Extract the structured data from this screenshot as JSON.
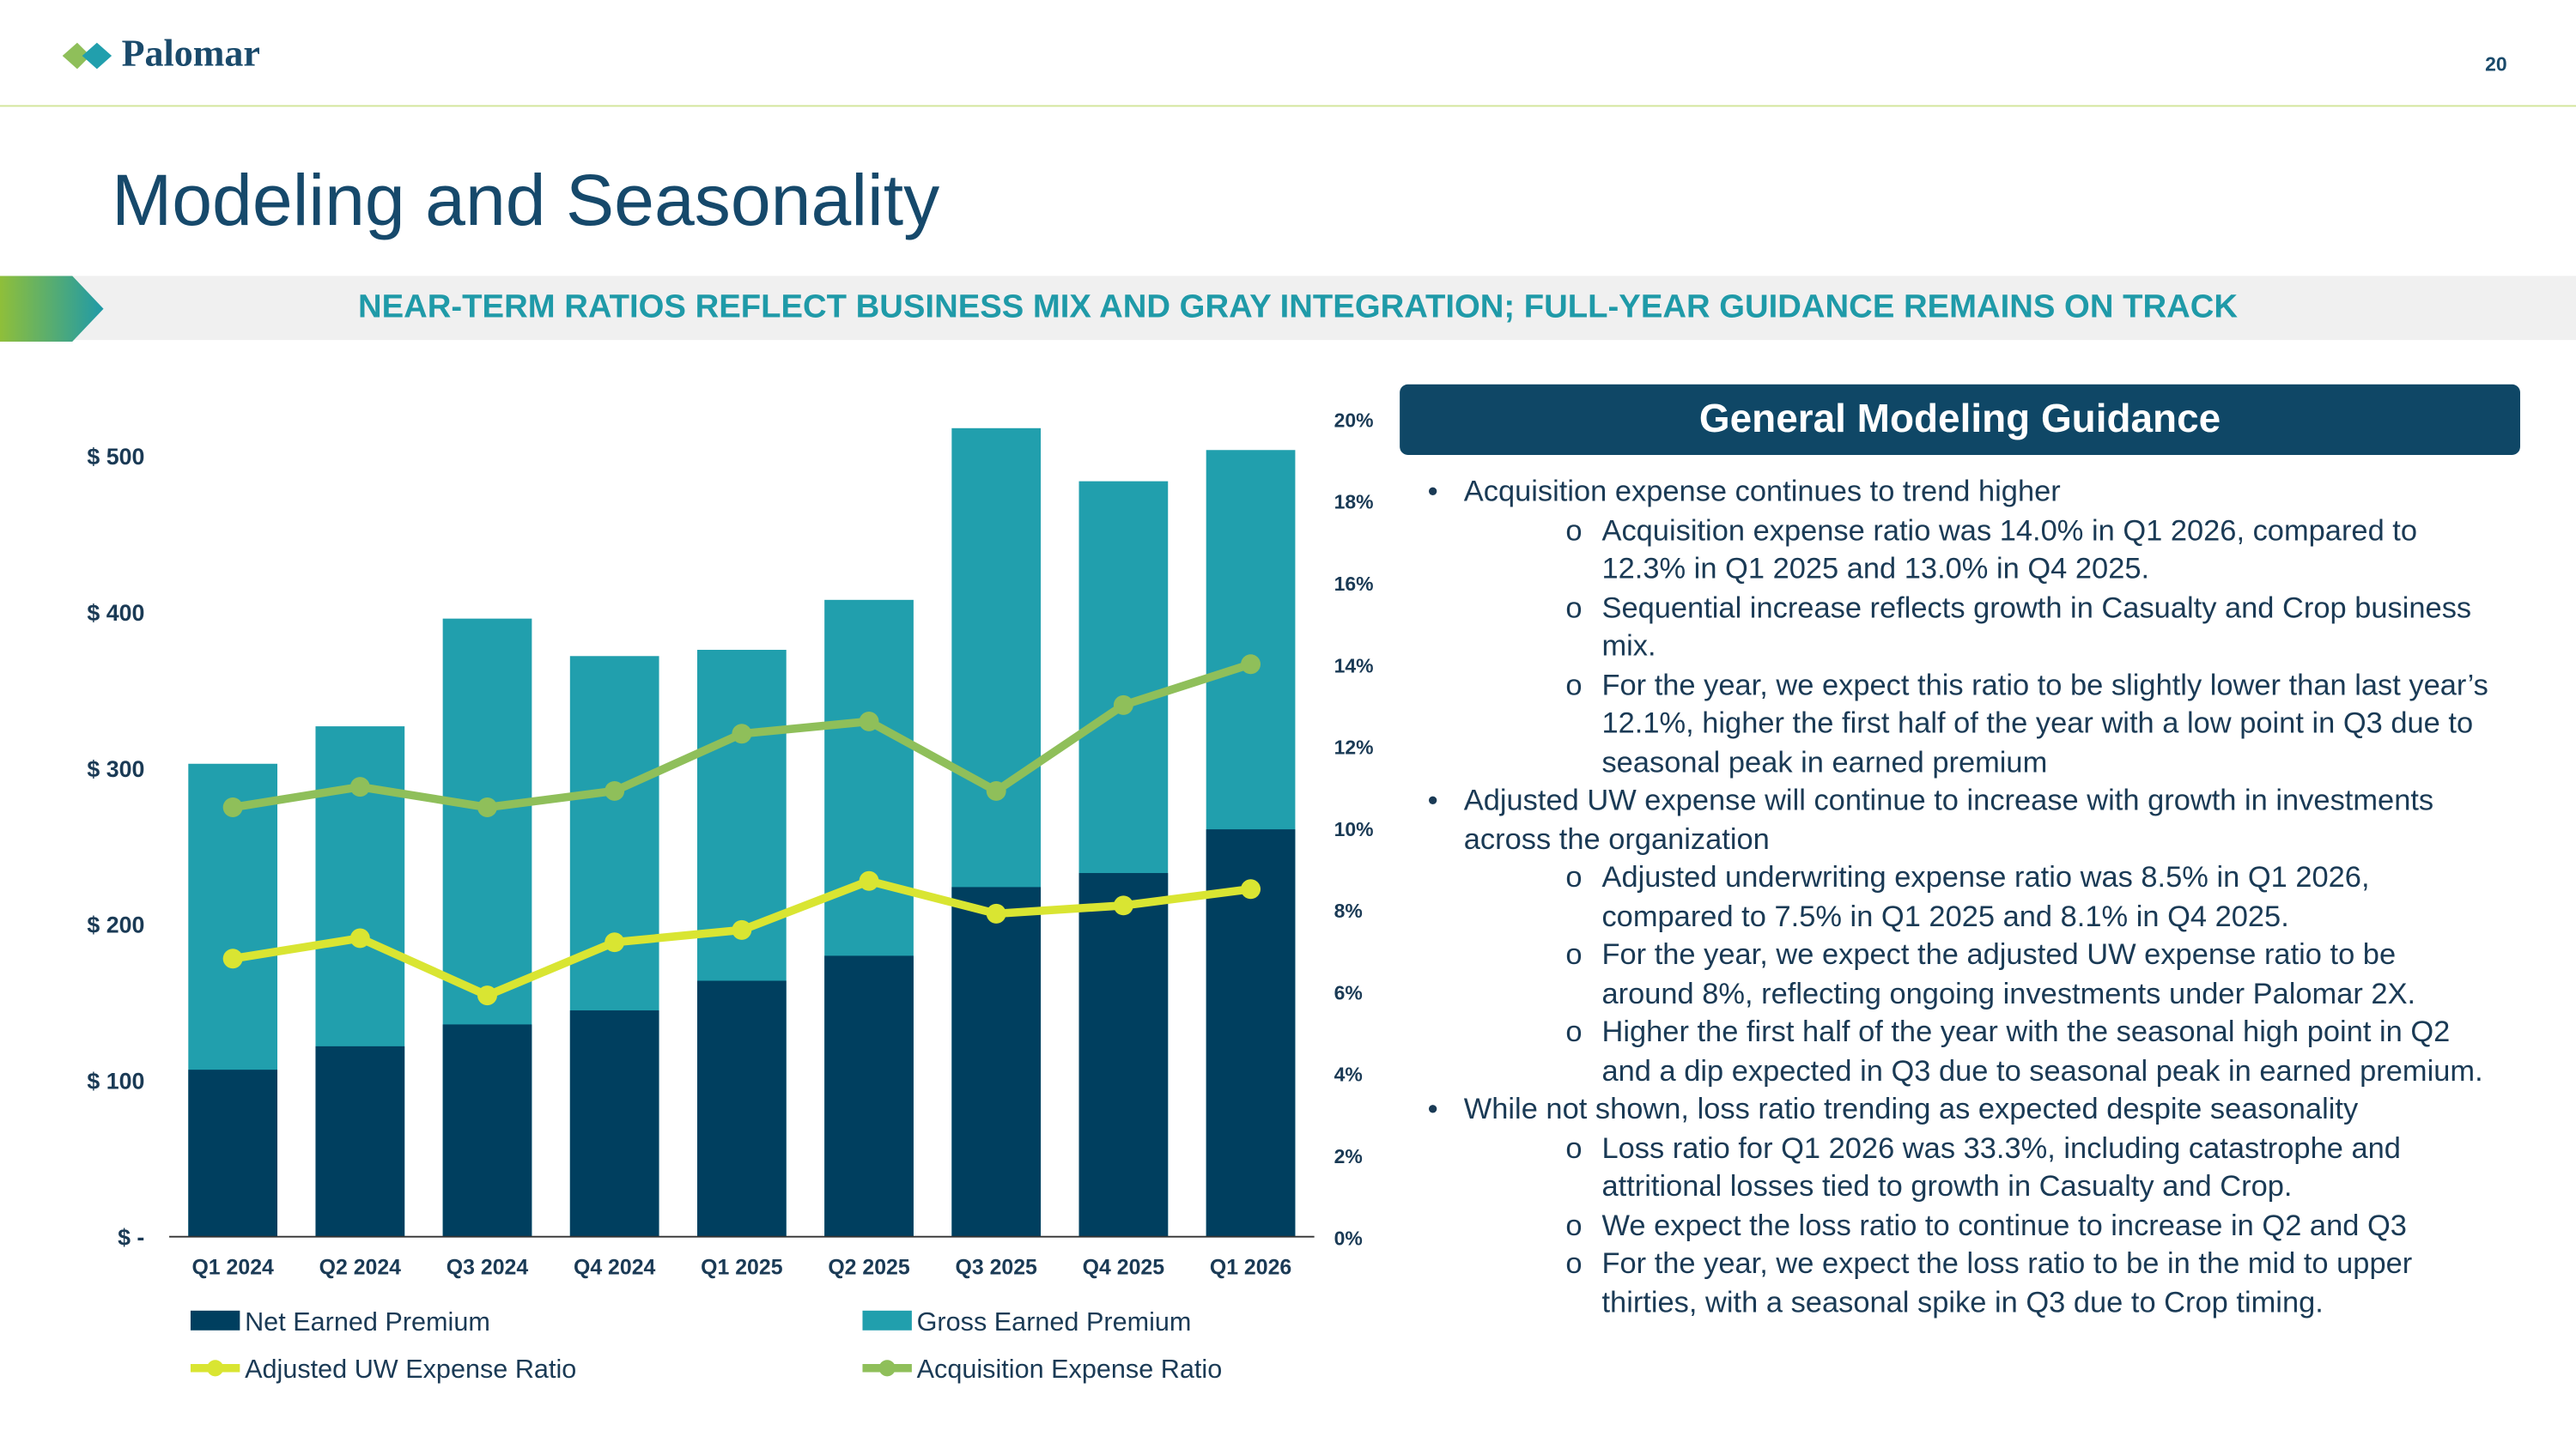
{
  "header": {
    "logo": "Palomar",
    "page_number": "20",
    "title": "Modeling and Seasonality",
    "subtitle": "NEAR-TERM RATIOS REFLECT BUSINESS MIX AND GRAY INTEGRATION; FULL-YEAR GUIDANCE REMAINS ON TRACK"
  },
  "chart_data": {
    "type": "bar",
    "categories": [
      "Q1 2024",
      "Q2 2024",
      "Q3 2024",
      "Q4 2024",
      "Q1 2025",
      "Q2 2025",
      "Q3 2025",
      "Q4 2025",
      "Q1 2026"
    ],
    "series": [
      {
        "name": "Gross Earned Premium",
        "type": "bar",
        "color": "#219fad",
        "values": [
          303,
          327,
          396,
          372,
          376,
          408,
          518,
          484,
          504
        ]
      },
      {
        "name": "Net Earned Premium",
        "type": "bar",
        "color": "#003f5f",
        "values": [
          107,
          122,
          136,
          145,
          164,
          180,
          224,
          233,
          261
        ]
      },
      {
        "name": "Adjusted UW Expense Ratio",
        "type": "line",
        "axis": "y2",
        "color": "#d9e532",
        "values": [
          6.8,
          7.3,
          5.9,
          7.2,
          7.5,
          8.7,
          7.9,
          8.1,
          8.5
        ]
      },
      {
        "name": "Acquisition Expense Ratio",
        "type": "line",
        "axis": "y2",
        "color": "#8fbf5a",
        "values": [
          10.5,
          11.0,
          10.5,
          10.9,
          12.3,
          12.6,
          10.9,
          13.0,
          14.0
        ]
      }
    ],
    "ylim": [
      0,
      524
    ],
    "yticks": [
      {
        "value": 0,
        "label": "$ -"
      },
      {
        "value": 100,
        "label": "$ 100"
      },
      {
        "value": 200,
        "label": "$ 200"
      },
      {
        "value": 300,
        "label": "$ 300"
      },
      {
        "value": 400,
        "label": "$ 400"
      },
      {
        "value": 500,
        "label": "$ 500"
      }
    ],
    "y2lim": [
      0,
      20
    ],
    "y2ticks": [
      {
        "value": 0,
        "label": "0%"
      },
      {
        "value": 2,
        "label": "2%"
      },
      {
        "value": 4,
        "label": "4%"
      },
      {
        "value": 6,
        "label": "6%"
      },
      {
        "value": 8,
        "label": "8%"
      },
      {
        "value": 10,
        "label": "10%"
      },
      {
        "value": 12,
        "label": "12%"
      },
      {
        "value": 14,
        "label": "14%"
      },
      {
        "value": 16,
        "label": "16%"
      },
      {
        "value": 18,
        "label": "18%"
      },
      {
        "value": 20,
        "label": "20%"
      }
    ],
    "grid": false
  },
  "guidance": {
    "title": "General Modeling Guidance",
    "bullets": [
      {
        "text": "Acquisition expense continues to trend higher",
        "items": [
          "Acquisition expense ratio was 14.0% in Q1 2026, compared to 12.3% in Q1 2025 and 13.0% in Q4 2025.",
          "Sequential increase reflects growth in Casualty and Crop business mix.",
          "For the year, we expect this ratio to be slightly lower than last year’s 12.1%, higher the first half of the year with a low point in Q3 due to seasonal peak in earned premium"
        ]
      },
      {
        "text": "Adjusted UW expense will continue to increase with growth in investments across the organization",
        "items": [
          "Adjusted underwriting expense ratio was 8.5% in Q1 2026, compared to 7.5% in Q1 2025 and 8.1% in Q4 2025.",
          "For the year, we expect the adjusted UW expense ratio to be around 8%, reflecting ongoing investments under Palomar 2X.",
          "Higher the first half of the year with the seasonal high point in Q2 and a dip expected in Q3 due to seasonal peak in earned premium."
        ]
      },
      {
        "text": "While not shown, loss ratio trending as expected despite seasonality",
        "items": [
          "Loss ratio for Q1 2026 was 33.3%, including catastrophe and attritional losses tied to growth in Casualty and Crop.",
          "We expect the loss ratio to continue to increase in Q2 and Q3",
          "For the year, we expect the loss ratio to be in the mid to upper thirties, with a seasonal spike in Q3 due to Crop timing."
        ]
      }
    ]
  }
}
